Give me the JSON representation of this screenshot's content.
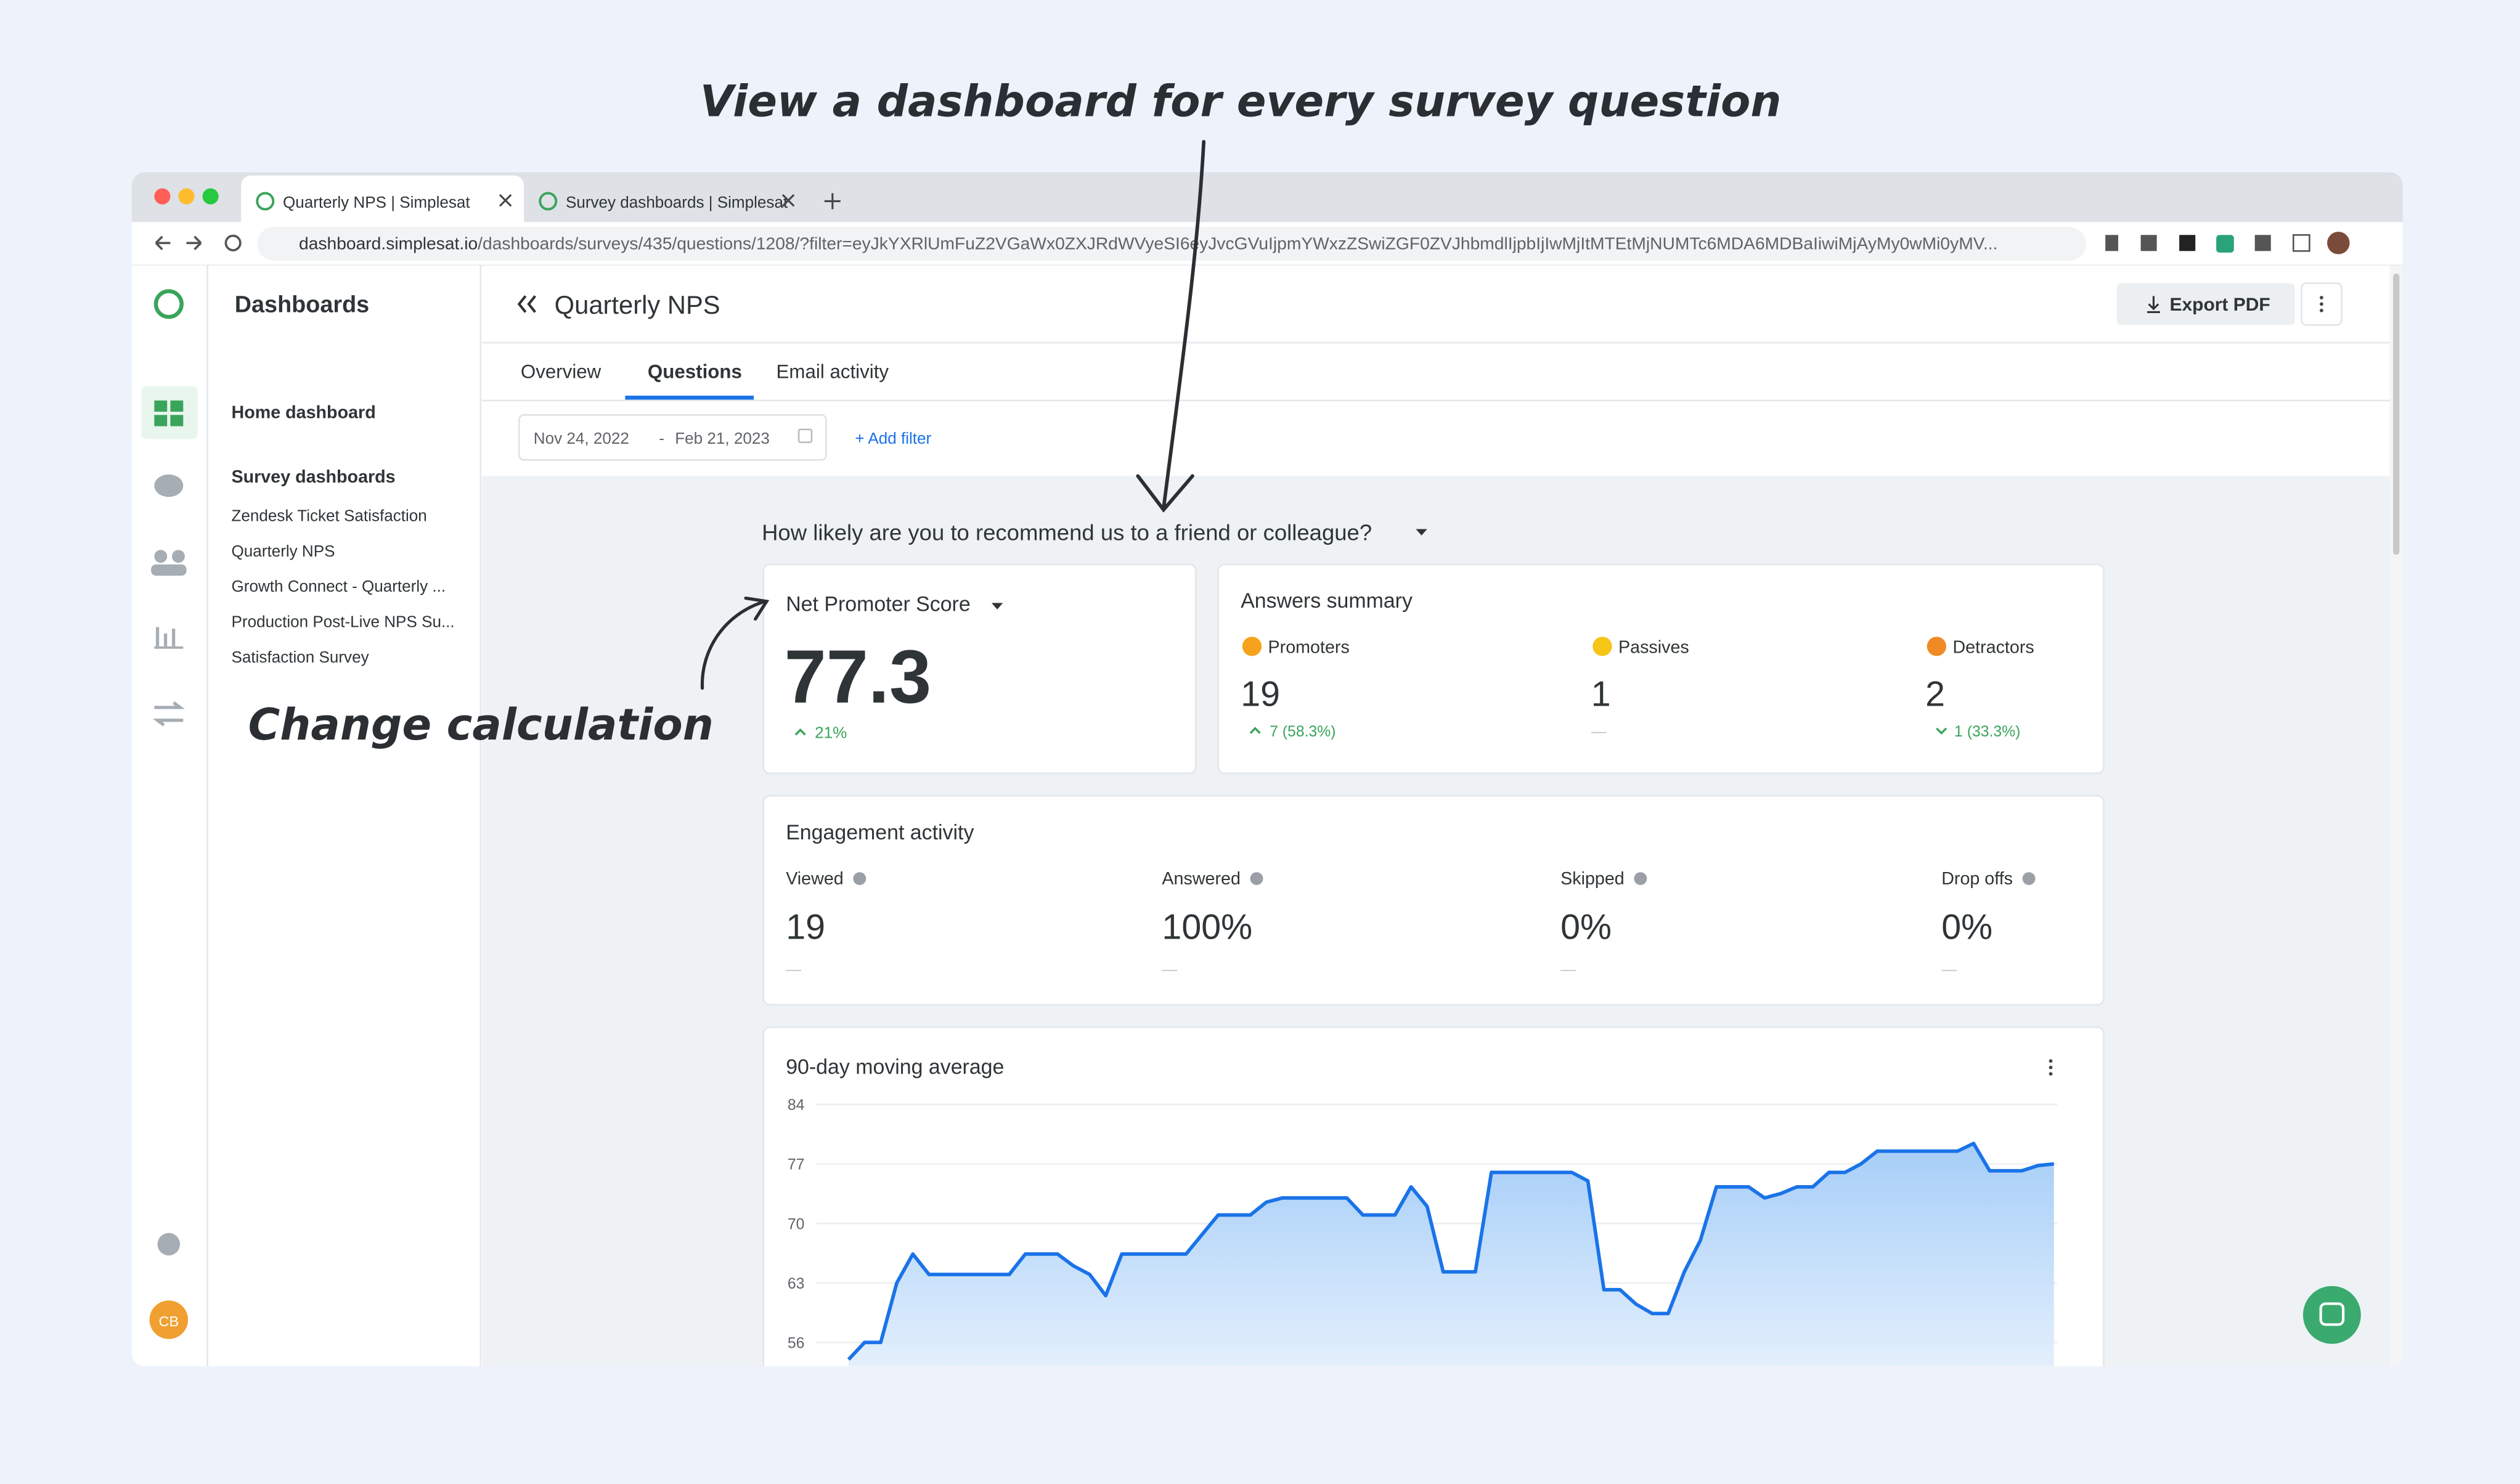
{
  "annotations": {
    "top": "View a dashboard for every survey question",
    "side": "Change calculation"
  },
  "browser": {
    "tabs": [
      "Quarterly NPS | Simplesat",
      "Survey dashboards | Simplesat"
    ],
    "url_host": "dashboard.simplesat.io",
    "url_path": "/dashboards/surveys/435/questions/1208/?filter=eyJkYXRlUmFuZ2VGaWx0ZXJRdWVyeSI6eyJvcGVuIjpmYWxzZSwiZGF0ZVJhbmdlIjpbIjIwMjItMTEtMjNUMTc6MDA6MDBaIiwiMjAyMy0wMi0yMV..."
  },
  "sidebar": {
    "title": "Dashboards",
    "home": "Home dashboard",
    "section": "Survey dashboards",
    "items": [
      "Zendesk Ticket Satisfaction",
      "Quarterly NPS",
      "Growth Connect - Quarterly ...",
      "Production Post-Live NPS Su...",
      "Satisfaction Survey"
    ],
    "avatar": "CB"
  },
  "header": {
    "title": "Quarterly NPS",
    "export": "Export PDF"
  },
  "tabs": [
    "Overview",
    "Questions",
    "Email activity"
  ],
  "filters": {
    "start": "Nov 24, 2022",
    "separator": "-",
    "end": "Feb 21, 2023",
    "add": "+ Add filter"
  },
  "question": "How likely are you to recommend us to a friend or colleague?",
  "nps": {
    "label": "Net Promoter Score",
    "value": 77.3,
    "change": "21%"
  },
  "answers": {
    "title": "Answers summary",
    "groups": [
      {
        "label": "Promoters",
        "count": 19,
        "change": "7 (58.3%)"
      },
      {
        "label": "Passives",
        "count": 1,
        "change": "—"
      },
      {
        "label": "Detractors",
        "count": 2,
        "change": "1 (33.3%)"
      }
    ]
  },
  "engagement": {
    "title": "Engagement activity",
    "metrics": [
      {
        "label": "Viewed",
        "value": "19",
        "change": "—"
      },
      {
        "label": "Answered",
        "value": "100%",
        "change": "—"
      },
      {
        "label": "Skipped",
        "value": "0%",
        "change": "—"
      },
      {
        "label": "Drop offs",
        "value": "0%",
        "change": "—"
      }
    ]
  },
  "chart_data": {
    "type": "line",
    "title": "90-day moving average",
    "ylim": [
      53,
      84
    ],
    "yticks": [
      84,
      77,
      70,
      63,
      56
    ],
    "grid": true,
    "color": "#1a73e8",
    "values": [
      54,
      56,
      56,
      63,
      66.4,
      64,
      64,
      64,
      64,
      64,
      64,
      66.4,
      66.4,
      66.4,
      65,
      64,
      61.5,
      66.4,
      66.4,
      66.4,
      66.4,
      66.4,
      68.7,
      71,
      71,
      71,
      72.5,
      73,
      73,
      73,
      73,
      73,
      71,
      71,
      71,
      74.3,
      72,
      64.3,
      64.3,
      64.3,
      76,
      76,
      76,
      76,
      76,
      76,
      75,
      62.2,
      62.2,
      60.5,
      59.4,
      59.4,
      64.3,
      68,
      74.3,
      74.3,
      74.3,
      73,
      73.5,
      74.3,
      74.3,
      76,
      76,
      77,
      78.5,
      78.5,
      78.5,
      78.5,
      78.5,
      78.5,
      79.4,
      76.2,
      76.2,
      76.2,
      76.8,
      77
    ]
  }
}
